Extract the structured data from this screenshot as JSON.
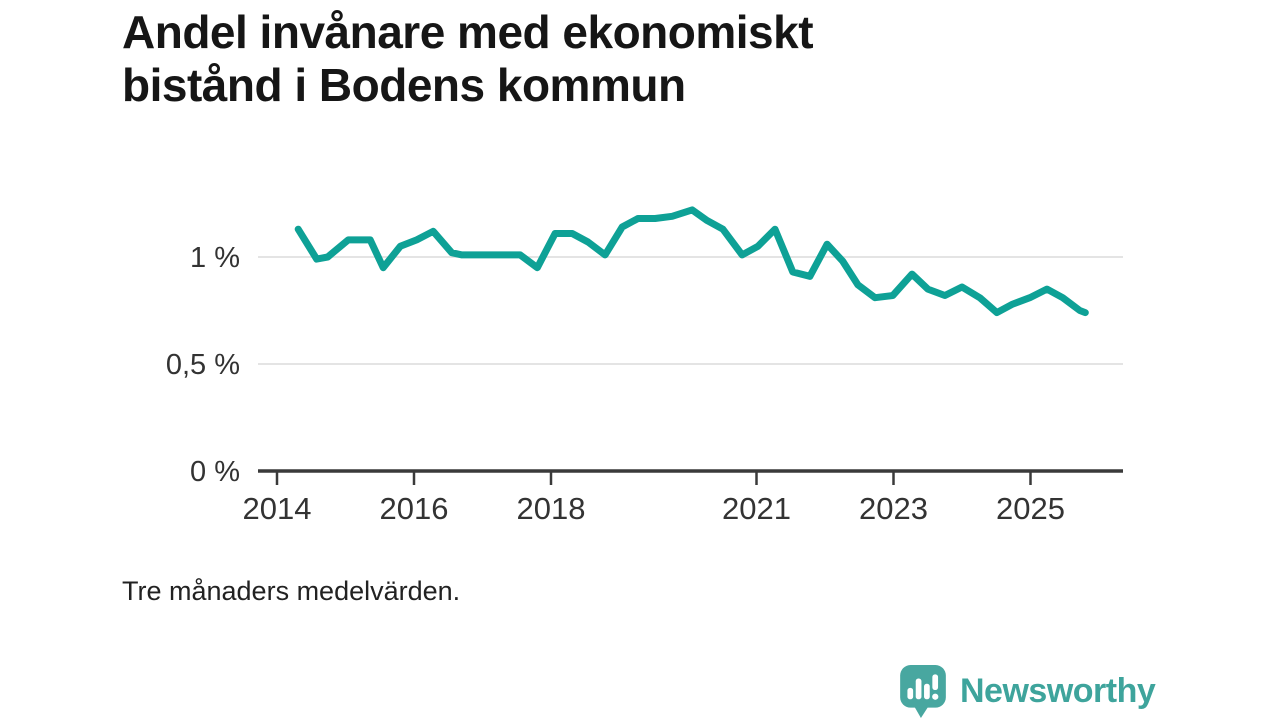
{
  "title": {
    "full": "Andel invånare med ekonomiskt bistånd i Bodens kommun",
    "line1": "Andel invånare med ekonomiskt",
    "line2": "bistånd i Bodens kommun"
  },
  "footnote": "Tre månaders medelvärden.",
  "branding": {
    "name": "Newsworthy",
    "icon": "speech-bubble-bar-chart-icon",
    "color": "#3EA49C",
    "icon_color": "#48A7A0"
  },
  "colors": {
    "line": "#0EA196",
    "grid": "#DCDCDC",
    "axis": "#3A3A3A",
    "tick_text": "#333333",
    "title_text": "#161616"
  },
  "chart_data": {
    "type": "line",
    "title": "Andel invånare med ekonomiskt bistånd i Bodens kommun",
    "subtitle_note": "Tre månaders medelvärden.",
    "unit": "%",
    "xlabel": "",
    "ylabel": "",
    "xlim": [
      2013.72,
      2026.35
    ],
    "ylim": [
      0,
      1.37
    ],
    "grid": "horizontal",
    "legend": "none",
    "y_ticks": [
      {
        "value": 0,
        "label": "0 %"
      },
      {
        "value": 0.5,
        "label": "0,5 %"
      },
      {
        "value": 1,
        "label": "1 %"
      }
    ],
    "x_ticks": [
      {
        "value": 2014,
        "label": "2014"
      },
      {
        "value": 2016,
        "label": "2016"
      },
      {
        "value": 2018,
        "label": "2018"
      },
      {
        "value": 2021,
        "label": "2021"
      },
      {
        "value": 2023,
        "label": "2023"
      },
      {
        "value": 2025,
        "label": "2025"
      }
    ],
    "series": [
      {
        "name": "Andel invånare med ekonomiskt bistånd",
        "points": [
          [
            2014.31,
            1.13
          ],
          [
            2014.58,
            0.99
          ],
          [
            2014.74,
            1.0
          ],
          [
            2015.04,
            1.08
          ],
          [
            2015.36,
            1.08
          ],
          [
            2015.55,
            0.95
          ],
          [
            2015.8,
            1.05
          ],
          [
            2016.04,
            1.08
          ],
          [
            2016.28,
            1.12
          ],
          [
            2016.55,
            1.02
          ],
          [
            2016.7,
            1.01
          ],
          [
            2017.55,
            1.01
          ],
          [
            2017.8,
            0.95
          ],
          [
            2018.06,
            1.11
          ],
          [
            2018.31,
            1.11
          ],
          [
            2018.54,
            1.07
          ],
          [
            2018.79,
            1.01
          ],
          [
            2019.04,
            1.14
          ],
          [
            2019.27,
            1.18
          ],
          [
            2019.52,
            1.18
          ],
          [
            2019.77,
            1.19
          ],
          [
            2020.06,
            1.22
          ],
          [
            2020.28,
            1.17
          ],
          [
            2020.51,
            1.13
          ],
          [
            2020.79,
            1.01
          ],
          [
            2021.02,
            1.05
          ],
          [
            2021.27,
            1.13
          ],
          [
            2021.53,
            0.93
          ],
          [
            2021.78,
            0.91
          ],
          [
            2022.03,
            1.06
          ],
          [
            2022.26,
            0.98
          ],
          [
            2022.48,
            0.87
          ],
          [
            2022.73,
            0.81
          ],
          [
            2022.99,
            0.82
          ],
          [
            2023.27,
            0.92
          ],
          [
            2023.5,
            0.85
          ],
          [
            2023.75,
            0.82
          ],
          [
            2024.0,
            0.86
          ],
          [
            2024.26,
            0.81
          ],
          [
            2024.51,
            0.74
          ],
          [
            2024.74,
            0.78
          ],
          [
            2024.99,
            0.81
          ],
          [
            2025.24,
            0.85
          ],
          [
            2025.47,
            0.81
          ],
          [
            2025.72,
            0.75
          ],
          [
            2025.8,
            0.74
          ]
        ]
      }
    ]
  }
}
